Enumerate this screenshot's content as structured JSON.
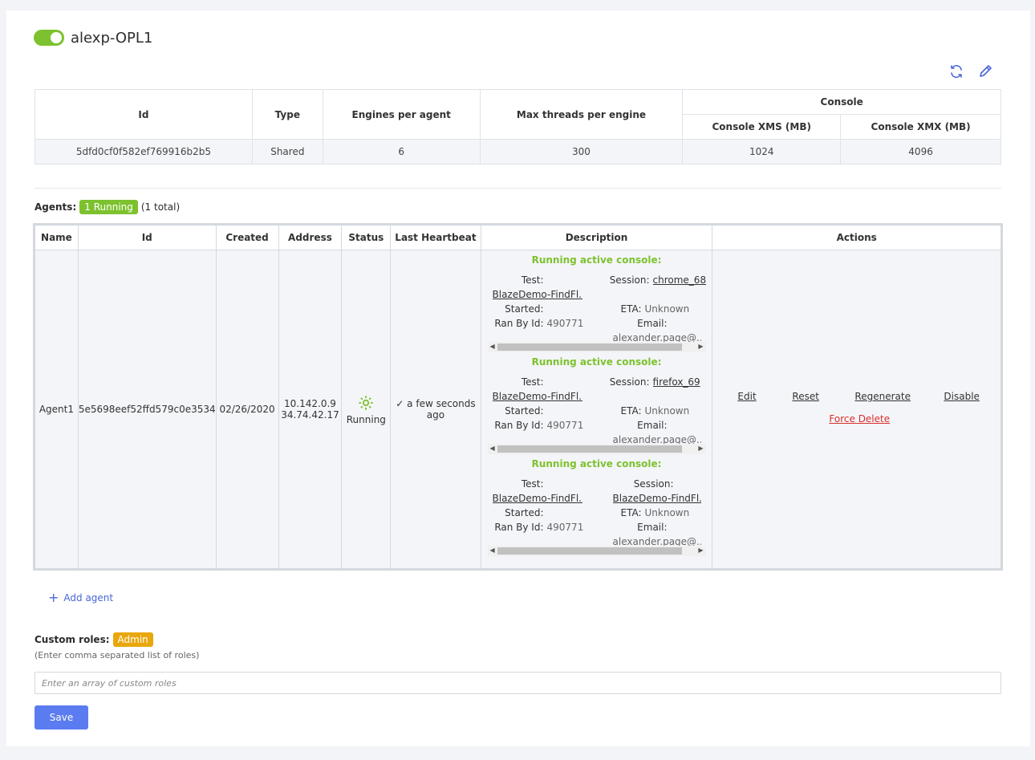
{
  "header": {
    "title": "alexp-OPL1",
    "toggle_on": true,
    "accent": "#7dc22e"
  },
  "icons": {
    "refresh": "refresh-icon",
    "edit": "pencil-icon"
  },
  "config_table": {
    "headers": {
      "id": "Id",
      "type": "Type",
      "engines": "Engines per agent",
      "threads": "Max threads per engine",
      "console": "Console",
      "xms": "Console XMS (MB)",
      "xmx": "Console XMX (MB)"
    },
    "row": {
      "id": "5dfd0cf0f582ef769916b2b5",
      "type": "Shared",
      "engines": "6",
      "threads": "300",
      "xms": "1024",
      "xmx": "4096"
    }
  },
  "agents": {
    "label": "Agents:",
    "running_badge": "1 Running",
    "total": "(1 total)",
    "headers": [
      "Name",
      "Id",
      "Created",
      "Address",
      "Status",
      "Last Heartbeat",
      "Description",
      "Actions"
    ],
    "rows": [
      {
        "name": "Agent1",
        "id": "5e5698eef52ffd579c0e3534",
        "created": "02/26/2020",
        "address1": "10.142.0.9",
        "address2": "34.74.42.17",
        "status": "Running",
        "heartbeat1": "a few seconds",
        "heartbeat2": "ago",
        "consoles": [
          {
            "heading": "Running active console:",
            "test_label": "Test:",
            "test": "BlazeDemo-FindFl...",
            "session_label": "Session:",
            "session": "chrome_68",
            "started_label": "Started:",
            "eta_label": "ETA:",
            "eta": "Unknown",
            "ranby_label": "Ran By Id:",
            "ranby": "490771",
            "email_label": "Email:",
            "email": "alexander.page@..."
          },
          {
            "heading": "Running active console:",
            "test_label": "Test:",
            "test": "BlazeDemo-FindFl...",
            "session_label": "Session:",
            "session": "firefox_69",
            "started_label": "Started:",
            "eta_label": "ETA:",
            "eta": "Unknown",
            "ranby_label": "Ran By Id:",
            "ranby": "490771",
            "email_label": "Email:",
            "email": "alexander.page@..."
          },
          {
            "heading": "Running active console:",
            "test_label": "Test:",
            "test": "BlazeDemo-FindFl...",
            "session_label": "Session:",
            "session": "BlazeDemo-FindFl...",
            "started_label": "Started:",
            "eta_label": "ETA:",
            "eta": "Unknown",
            "ranby_label": "Ran By Id:",
            "ranby": "490771",
            "email_label": "Email:",
            "email": "alexander.page@..."
          }
        ],
        "actions": {
          "edit": "Edit",
          "reset": "Reset",
          "regenerate": "Regenerate",
          "disable": "Disable",
          "force_delete": "Force Delete"
        }
      }
    ],
    "add_label": "Add agent"
  },
  "roles": {
    "label": "Custom roles:",
    "badge": "Admin",
    "hint": "(Enter comma separated list of roles)",
    "placeholder": "Enter an array of custom roles",
    "value": ""
  },
  "save_label": "Save",
  "colors": {
    "green": "#7dc22e",
    "amber": "#e8a70c",
    "blue_button": "#5b7cf0",
    "link_blue": "#4a66d9",
    "danger": "#d9302c"
  }
}
